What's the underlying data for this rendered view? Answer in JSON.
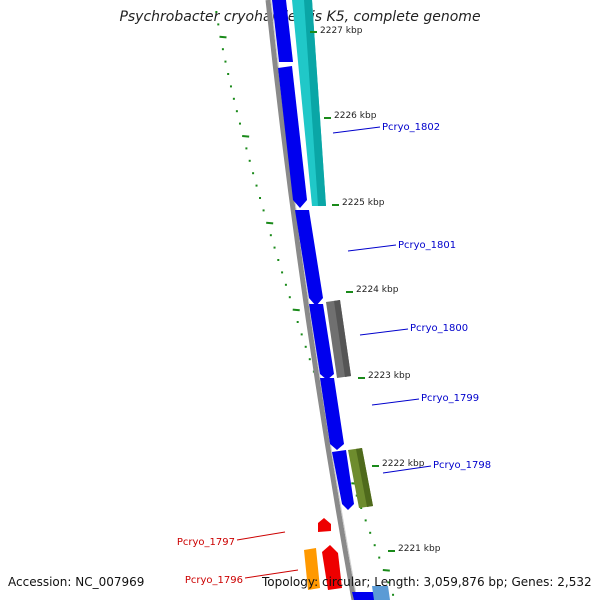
{
  "title": "Psychrobacter cryohalolentis K5, complete genome",
  "footer": {
    "accession": "Accession: NC_007969",
    "summary": "Topology: circular; Length: 3,059,876 bp; Genes: 2,532"
  },
  "colors": {
    "forward_cds": "#0000ee",
    "gc_tick": "#1a8a1a",
    "backbone": "#808080",
    "label_forward": "#0000cc",
    "label_reverse": "#cc0000"
  },
  "ticks": [
    {
      "label": "2227 kbp"
    },
    {
      "label": "2226 kbp"
    },
    {
      "label": "2225 kbp"
    },
    {
      "label": "2224 kbp"
    },
    {
      "label": "2223 kbp"
    },
    {
      "label": "2222 kbp"
    },
    {
      "label": "2221 kbp"
    }
  ],
  "genes": [
    {
      "name": "Pcryo_1802",
      "color": "#20c8c8"
    },
    {
      "name": "Pcryo_1801",
      "color": "#0000ee"
    },
    {
      "name": "Pcryo_1800",
      "color": "#707070"
    },
    {
      "name": "Pcryo_1799",
      "color": "#0000ee"
    },
    {
      "name": "Pcryo_1798",
      "color": "#6e8c2e"
    },
    {
      "name": "Pcryo_1797",
      "color": "#ee0000"
    },
    {
      "name": "Pcryo_1796",
      "color": "#ff9900"
    }
  ]
}
